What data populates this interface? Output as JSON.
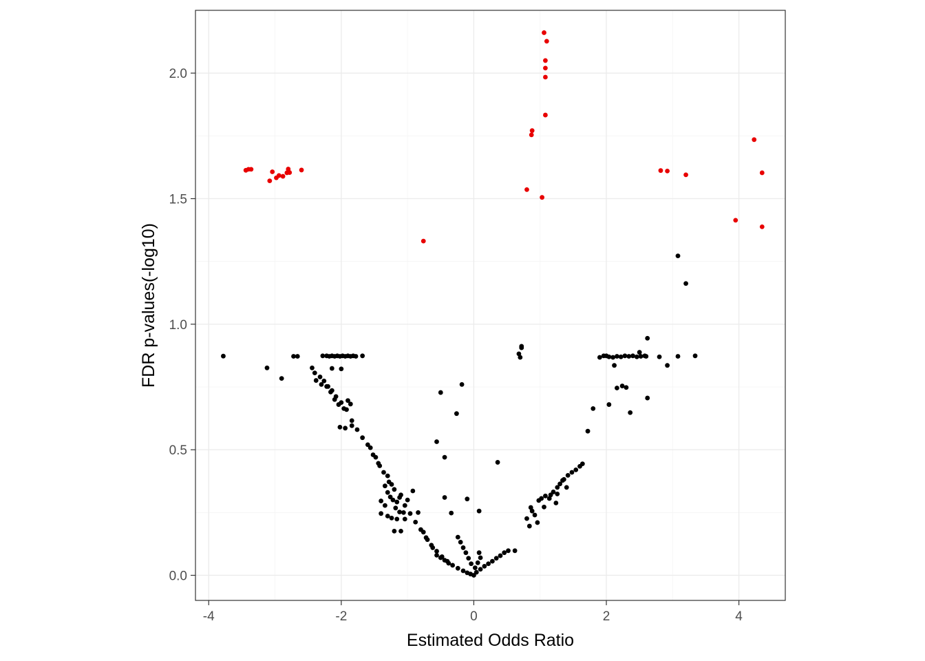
{
  "chart_data": {
    "type": "scatter",
    "title": "",
    "xlabel": "Estimated Odds Ratio",
    "ylabel": "FDR p-values(-log10)",
    "xlim": [
      -4.2,
      4.7
    ],
    "ylim": [
      -0.1,
      2.25
    ],
    "x_ticks": [
      -4,
      -2,
      0,
      2,
      4
    ],
    "x_tick_labels": [
      "-4",
      "-2",
      "0",
      "2",
      "4"
    ],
    "y_ticks": [
      0.0,
      0.5,
      1.0,
      1.5,
      2.0
    ],
    "y_tick_labels": [
      "0.0",
      "0.5",
      "1.0",
      "1.5",
      "2.0"
    ],
    "grid": true,
    "legend": "none",
    "significance_threshold": 1.30103,
    "colors": {
      "significant": "#e80000",
      "not_significant": "#000000",
      "grid_major": "#ebebeb",
      "grid_minor": "#f4f4f4",
      "panel_border": "#333333"
    },
    "series": [
      {
        "color": "#e80000",
        "points": [
          [
            -3.44,
            1.613
          ],
          [
            -3.4,
            1.617
          ],
          [
            -3.36,
            1.617
          ],
          [
            -3.08,
            1.571
          ],
          [
            -3.04,
            1.607
          ],
          [
            -2.98,
            1.583
          ],
          [
            -2.94,
            1.592
          ],
          [
            -2.88,
            1.589
          ],
          [
            -2.82,
            1.603
          ],
          [
            -2.8,
            1.618
          ],
          [
            -2.78,
            1.604
          ],
          [
            -2.6,
            1.614
          ],
          [
            -0.76,
            1.331
          ],
          [
            1.06,
            2.161
          ],
          [
            1.1,
            2.127
          ],
          [
            1.08,
            2.05
          ],
          [
            1.08,
            2.02
          ],
          [
            1.08,
            1.984
          ],
          [
            1.08,
            1.833
          ],
          [
            0.88,
            1.771
          ],
          [
            0.87,
            1.754
          ],
          [
            0.8,
            1.536
          ],
          [
            1.03,
            1.505
          ],
          [
            2.82,
            1.612
          ],
          [
            2.92,
            1.61
          ],
          [
            3.2,
            1.595
          ],
          [
            4.23,
            1.735
          ],
          [
            4.35,
            1.603
          ],
          [
            3.95,
            1.414
          ],
          [
            4.35,
            1.388
          ]
        ]
      },
      {
        "color": "#000000",
        "points": [
          [
            -3.78,
            0.873
          ],
          [
            -3.12,
            0.826
          ],
          [
            -2.9,
            0.784
          ],
          [
            -2.72,
            0.872
          ],
          [
            -2.66,
            0.872
          ],
          [
            -2.44,
            0.826
          ],
          [
            -2.4,
            0.806
          ],
          [
            -2.32,
            0.79
          ],
          [
            -2.26,
            0.774
          ],
          [
            -2.2,
            0.752
          ],
          [
            -2.14,
            0.736
          ],
          [
            -2.08,
            0.712
          ],
          [
            -2.0,
            0.688
          ],
          [
            -1.92,
            0.66
          ],
          [
            -1.84,
            0.616
          ],
          [
            -1.76,
            0.58
          ],
          [
            -1.68,
            0.548
          ],
          [
            -1.6,
            0.52
          ],
          [
            -1.52,
            0.48
          ],
          [
            -1.44,
            0.446
          ],
          [
            -1.36,
            0.41
          ],
          [
            -1.28,
            0.372
          ],
          [
            -1.2,
            0.342
          ],
          [
            -1.12,
            0.31
          ],
          [
            -1.04,
            0.278
          ],
          [
            -0.96,
            0.246
          ],
          [
            -0.88,
            0.212
          ],
          [
            -0.8,
            0.182
          ],
          [
            -0.72,
            0.15
          ],
          [
            -0.64,
            0.12
          ],
          [
            -0.56,
            0.096
          ],
          [
            -0.48,
            0.074
          ],
          [
            -0.4,
            0.056
          ],
          [
            -0.32,
            0.04
          ],
          [
            -0.24,
            0.028
          ],
          [
            -0.16,
            0.018
          ],
          [
            -0.1,
            0.01
          ],
          [
            -0.05,
            0.005
          ],
          [
            0.0,
            0.0
          ],
          [
            -2.38,
            0.776
          ],
          [
            -2.3,
            0.76
          ],
          [
            -2.22,
            0.752
          ],
          [
            -2.16,
            0.73
          ],
          [
            -2.1,
            0.7
          ],
          [
            -2.04,
            0.68
          ],
          [
            -1.96,
            0.664
          ],
          [
            -1.9,
            0.696
          ],
          [
            -1.86,
            0.682
          ],
          [
            -2.28,
            0.874
          ],
          [
            -2.22,
            0.874
          ],
          [
            -2.18,
            0.872
          ],
          [
            -2.14,
            0.874
          ],
          [
            -2.1,
            0.872
          ],
          [
            -2.06,
            0.874
          ],
          [
            -2.02,
            0.872
          ],
          [
            -1.98,
            0.874
          ],
          [
            -1.94,
            0.872
          ],
          [
            -1.9,
            0.874
          ],
          [
            -1.86,
            0.872
          ],
          [
            -1.82,
            0.874
          ],
          [
            -1.78,
            0.872
          ],
          [
            -1.68,
            0.874
          ],
          [
            -2.14,
            0.824
          ],
          [
            -2.0,
            0.822
          ],
          [
            -2.02,
            0.59
          ],
          [
            -1.94,
            0.586
          ],
          [
            -1.84,
            0.596
          ],
          [
            -1.56,
            0.508
          ],
          [
            -1.48,
            0.47
          ],
          [
            -1.42,
            0.436
          ],
          [
            -1.3,
            0.396
          ],
          [
            -1.24,
            0.362
          ],
          [
            -1.34,
            0.356
          ],
          [
            -1.3,
            0.33
          ],
          [
            -1.26,
            0.312
          ],
          [
            -1.22,
            0.3
          ],
          [
            -1.16,
            0.292
          ],
          [
            -1.1,
            0.32
          ],
          [
            -1.18,
            0.268
          ],
          [
            -1.06,
            0.25
          ],
          [
            -1.0,
            0.3
          ],
          [
            -0.92,
            0.336
          ],
          [
            -1.4,
            0.296
          ],
          [
            -1.34,
            0.278
          ],
          [
            -1.24,
            0.228
          ],
          [
            -1.16,
            0.224
          ],
          [
            -1.1,
            0.176
          ],
          [
            -1.2,
            0.176
          ],
          [
            -1.3,
            0.236
          ],
          [
            -1.4,
            0.246
          ],
          [
            -1.12,
            0.252
          ],
          [
            -1.04,
            0.224
          ],
          [
            -0.84,
            0.25
          ],
          [
            -0.76,
            0.172
          ],
          [
            -0.7,
            0.142
          ],
          [
            -0.62,
            0.11
          ],
          [
            -0.56,
            0.08
          ],
          [
            -0.5,
            0.07
          ],
          [
            -0.44,
            0.06
          ],
          [
            -0.38,
            0.048
          ],
          [
            -0.24,
            0.152
          ],
          [
            -0.2,
            0.132
          ],
          [
            -0.16,
            0.11
          ],
          [
            -0.12,
            0.09
          ],
          [
            -0.08,
            0.068
          ],
          [
            -0.04,
            0.046
          ],
          [
            0.08,
            0.09
          ],
          [
            0.1,
            0.07
          ],
          [
            0.06,
            0.05
          ],
          [
            0.02,
            0.03
          ],
          [
            -0.56,
            0.532
          ],
          [
            -0.5,
            0.728
          ],
          [
            -0.44,
            0.47
          ],
          [
            -0.26,
            0.644
          ],
          [
            -0.18,
            0.76
          ],
          [
            -0.44,
            0.31
          ],
          [
            -0.34,
            0.248
          ],
          [
            -0.1,
            0.304
          ],
          [
            0.08,
            0.256
          ],
          [
            0.36,
            0.45
          ],
          [
            0.1,
            0.024
          ],
          [
            0.16,
            0.036
          ],
          [
            0.22,
            0.046
          ],
          [
            0.28,
            0.056
          ],
          [
            0.34,
            0.068
          ],
          [
            0.4,
            0.078
          ],
          [
            0.46,
            0.09
          ],
          [
            0.52,
            0.098
          ],
          [
            0.62,
            0.098
          ],
          [
            0.04,
            0.012
          ],
          [
            0.7,
            0.868
          ],
          [
            0.68,
            0.882
          ],
          [
            0.72,
            0.906
          ],
          [
            0.72,
            0.912
          ],
          [
            0.8,
            0.226
          ],
          [
            0.86,
            0.27
          ],
          [
            0.88,
            0.256
          ],
          [
            0.92,
            0.24
          ],
          [
            0.84,
            0.196
          ],
          [
            0.98,
            0.298
          ],
          [
            1.02,
            0.306
          ],
          [
            1.08,
            0.316
          ],
          [
            1.14,
            0.306
          ],
          [
            1.16,
            0.32
          ],
          [
            1.2,
            0.332
          ],
          [
            1.26,
            0.35
          ],
          [
            1.3,
            0.364
          ],
          [
            1.36,
            0.382
          ],
          [
            1.42,
            0.398
          ],
          [
            1.48,
            0.41
          ],
          [
            1.54,
            0.42
          ],
          [
            1.6,
            0.434
          ],
          [
            1.64,
            0.444
          ],
          [
            0.96,
            0.21
          ],
          [
            1.06,
            0.272
          ],
          [
            1.26,
            0.324
          ],
          [
            1.34,
            0.378
          ],
          [
            1.4,
            0.35
          ],
          [
            1.24,
            0.288
          ],
          [
            1.72,
            0.574
          ],
          [
            1.8,
            0.664
          ],
          [
            1.9,
            0.868
          ],
          [
            1.96,
            0.874
          ],
          [
            2.0,
            0.874
          ],
          [
            2.04,
            0.87
          ],
          [
            2.1,
            0.868
          ],
          [
            2.16,
            0.872
          ],
          [
            2.22,
            0.87
          ],
          [
            2.28,
            0.874
          ],
          [
            2.34,
            0.872
          ],
          [
            2.4,
            0.874
          ],
          [
            2.46,
            0.87
          ],
          [
            2.52,
            0.872
          ],
          [
            2.58,
            0.874
          ],
          [
            2.62,
            0.944
          ],
          [
            2.6,
            0.872
          ],
          [
            2.5,
            0.888
          ],
          [
            2.04,
            0.68
          ],
          [
            2.12,
            0.836
          ],
          [
            2.16,
            0.746
          ],
          [
            2.24,
            0.754
          ],
          [
            2.3,
            0.748
          ],
          [
            2.36,
            0.648
          ],
          [
            2.62,
            0.706
          ],
          [
            2.8,
            0.87
          ],
          [
            2.92,
            0.836
          ],
          [
            3.08,
            0.872
          ],
          [
            3.34,
            0.874
          ],
          [
            3.08,
            1.272
          ],
          [
            3.2,
            1.162
          ]
        ]
      }
    ]
  }
}
